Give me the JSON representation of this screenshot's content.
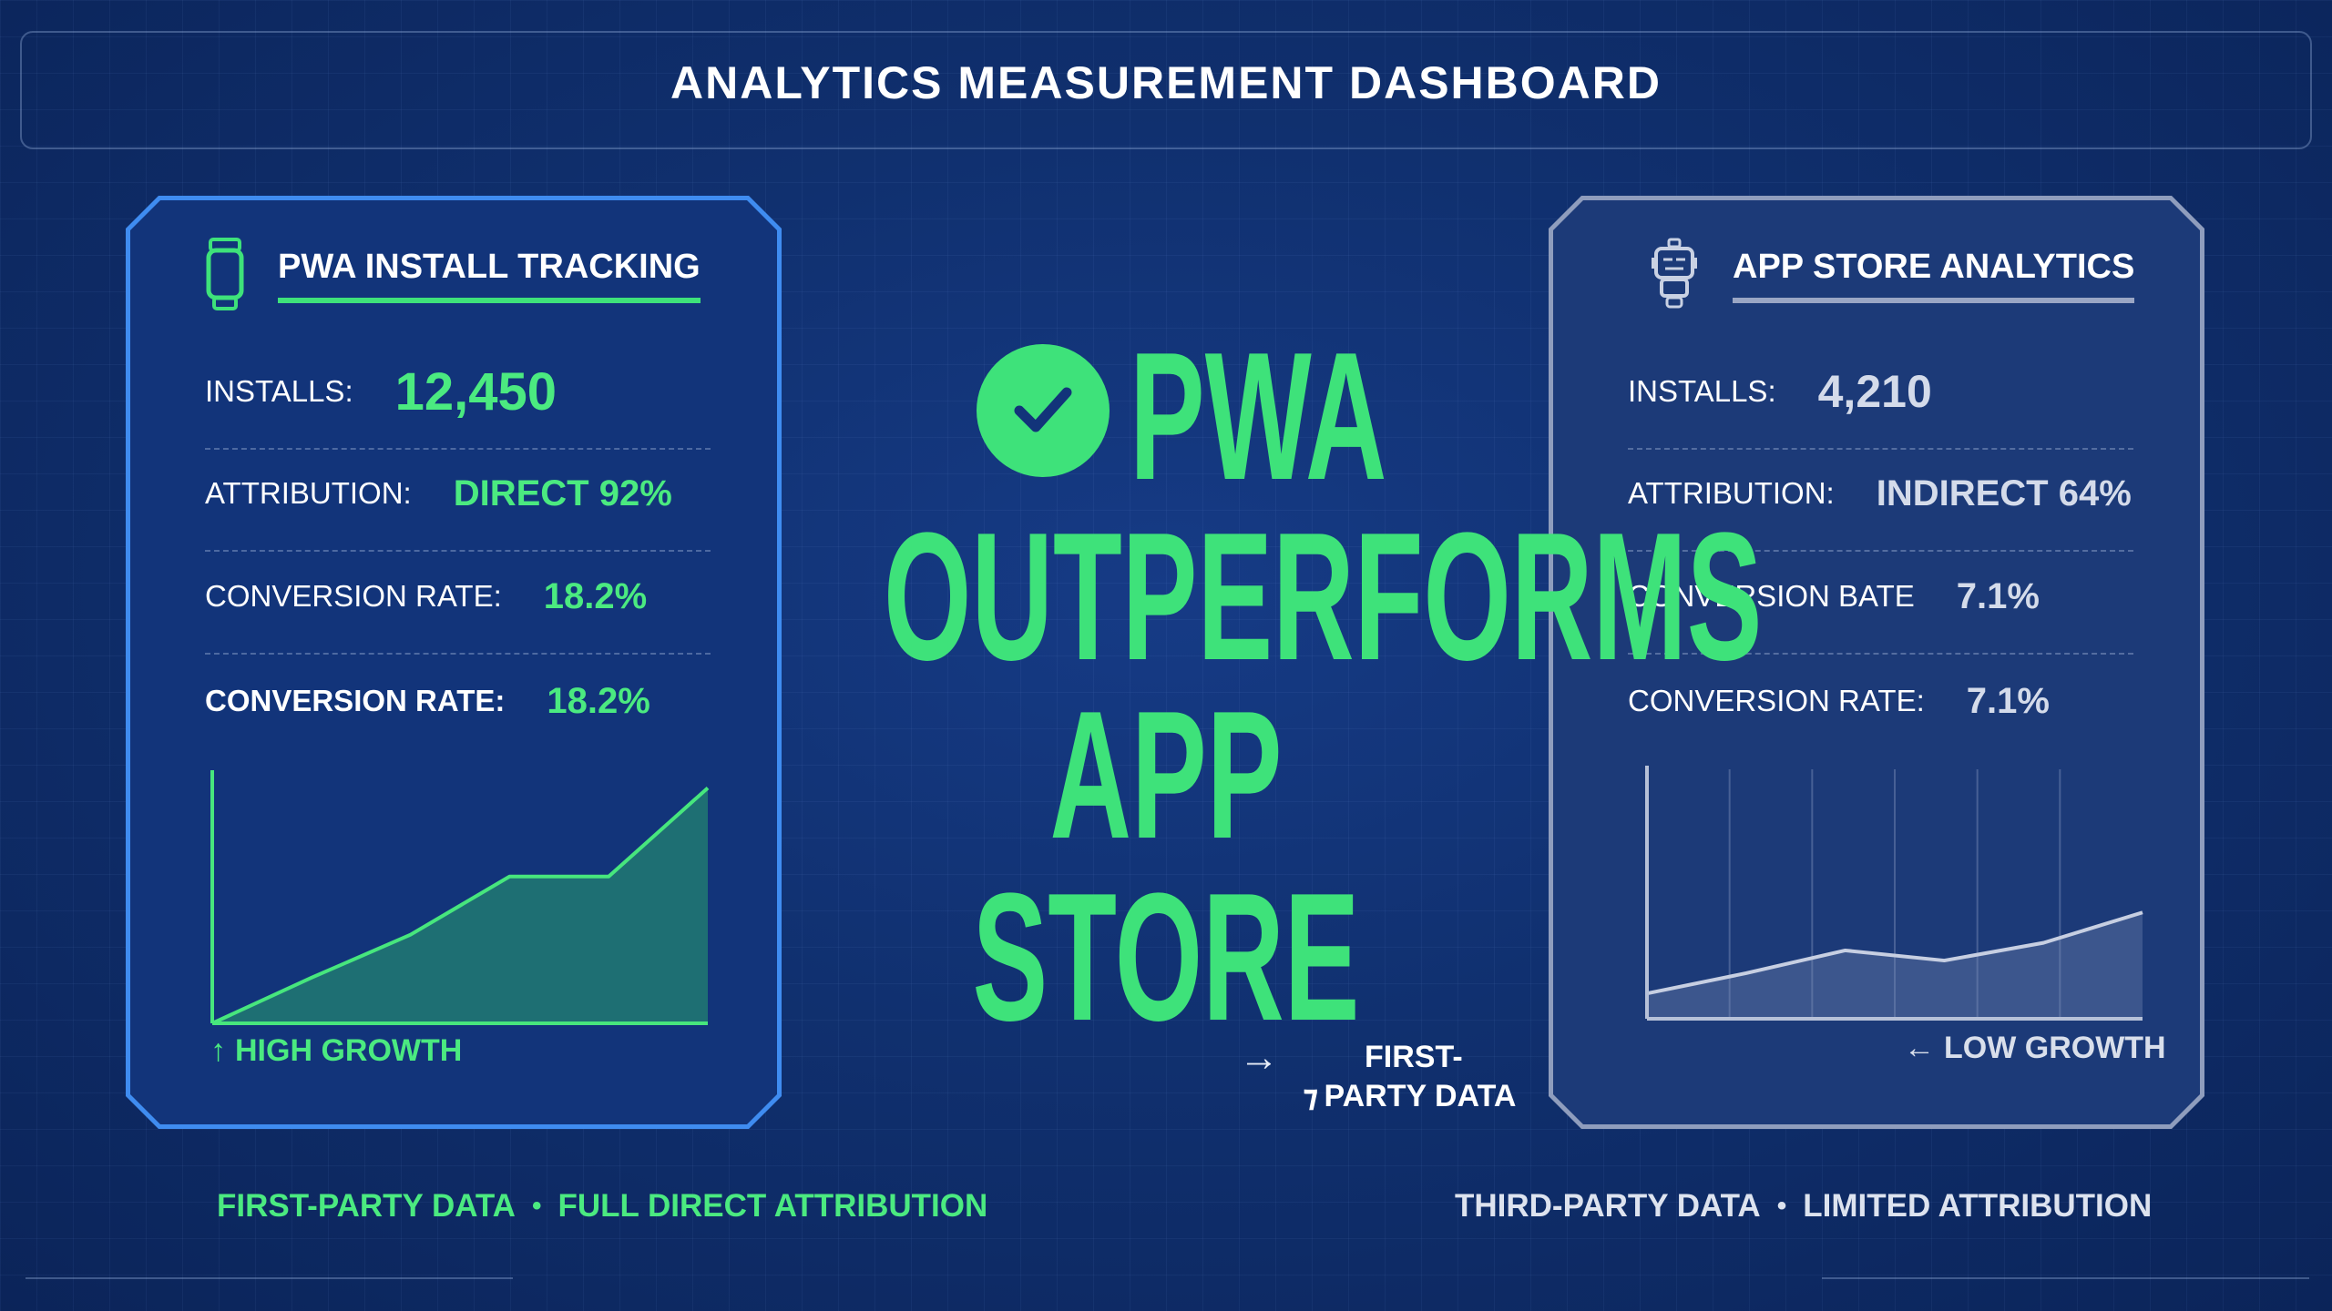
{
  "header": {
    "title": "ANALYTICS MEASUREMENT DASHBOARD"
  },
  "pwa_panel": {
    "title": "PWA INSTALL TRACKING",
    "icon": "smartwatch-icon",
    "metrics": [
      {
        "label": "INSTALLS:",
        "value": "12,450"
      },
      {
        "label": "ATTRIBUTION:",
        "value": "DIRECT 92%"
      },
      {
        "label": "CONVERSION RATE:",
        "value": "18.2%"
      },
      {
        "label": "CONVERSION RATE:",
        "value": "18.2%"
      }
    ],
    "growth_label": "HIGH GROWTH",
    "growth_arrow": "↑"
  },
  "app_store_panel": {
    "title": "APP STORE ANALYTICS",
    "icon": "robot-icon",
    "metrics": [
      {
        "label": "INSTALLS:",
        "value": "4,210"
      },
      {
        "label": "ATTRIBUTION:",
        "value": "INDIRECT 64%"
      },
      {
        "label": "CONVERSION BATE",
        "value": "7.1%"
      },
      {
        "label": "CONVERSION RATE:",
        "value": "7.1%"
      }
    ],
    "growth_label": "LOW GROWTH",
    "growth_arrow": "←"
  },
  "hero": {
    "line1": "PWA",
    "line2": "OUTPERFORMS",
    "line3": "APP STORE",
    "badge_icon": "checkmark-icon"
  },
  "first_party_note": {
    "arrow": "→",
    "line1": "FIRST-",
    "line2_glyph": "⁊",
    "line2": "PARTY DATA"
  },
  "footer": {
    "left_a": "FIRST-PARTY DATA",
    "left_b": "FULL DIRECT ATTRIBUTION",
    "right_a": "THIRD-PARTY DATA",
    "right_b": "LIMITED ATTRIBUTION",
    "separator": "•"
  },
  "colors": {
    "accent_green": "#3ee27a",
    "pwa_border": "#3f8cf0",
    "appstore_border": "#8f9dbd",
    "background": "#10306f"
  },
  "chart_data": [
    {
      "type": "area",
      "series": [
        {
          "values": [
            0,
            18,
            35,
            58,
            58,
            93
          ]
        }
      ],
      "x": [
        0,
        1,
        2,
        3,
        4,
        5
      ],
      "ylim": [
        0,
        100
      ],
      "xlabel": "",
      "ylabel": ""
    },
    {
      "type": "area",
      "series": [
        {
          "values": [
            10,
            18,
            27,
            23,
            30,
            42
          ]
        }
      ],
      "x": [
        0,
        1,
        2,
        3,
        4,
        5
      ],
      "ylim": [
        0,
        100
      ],
      "xlabel": "",
      "ylabel": ""
    }
  ]
}
